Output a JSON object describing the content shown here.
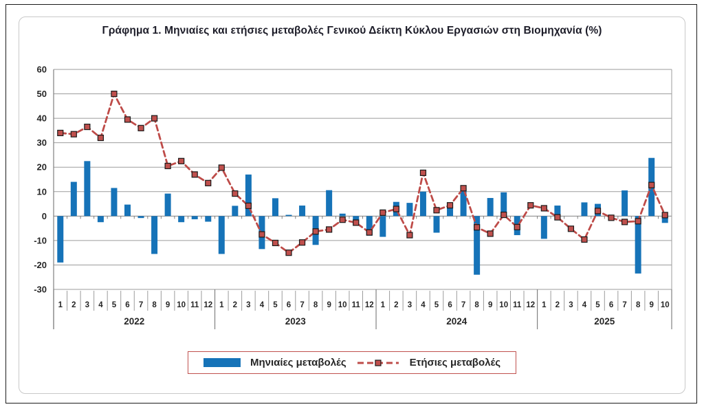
{
  "figure": {
    "title": "Γράφημα 1. Μηνιαίες και ετήσιες μεταβολές  Γενικού Δείκτη Κύκλου Εργασιών στη Βιομηχανία (%)"
  },
  "legend": {
    "monthly_label": "Μηνιαίες μεταβολές",
    "annual_label": "Ετήσιες μεταβολές"
  },
  "colors": {
    "bar": "#1673B8",
    "line": "#BE4B48",
    "marker_fill": "#C0504D",
    "marker_stroke": "#1A1A1A",
    "grid": "#9B9B9B",
    "axis_line": "#808080",
    "axis_text": "#262626",
    "legend_border": "#C0504D",
    "figure_border": "#1A1A1A",
    "chart_area_border": "#C8C8C8"
  },
  "chart_data": {
    "type": "combo_bar_line",
    "title": "Γράφημα 1. Μηνιαίες και ετήσιες μεταβολές  Γενικού Δείκτη Κύκλου Εργασιών στη Βιομηχανία (%)",
    "xlabel": "",
    "ylabel": "",
    "ylim": [
      -30,
      60
    ],
    "ytick_step": 10,
    "grid": true,
    "legend_position": "bottom",
    "categories": [
      "1",
      "2",
      "3",
      "4",
      "5",
      "6",
      "7",
      "8",
      "9",
      "10",
      "11",
      "12",
      "1",
      "2",
      "3",
      "4",
      "5",
      "6",
      "7",
      "8",
      "9",
      "10",
      "11",
      "12",
      "1",
      "2",
      "3",
      "4",
      "5",
      "6",
      "7",
      "8",
      "9",
      "10",
      "11",
      "12",
      "1",
      "2",
      "3",
      "4",
      "5",
      "6",
      "7",
      "8",
      "9",
      "10"
    ],
    "year_groups": [
      {
        "label": "2022",
        "count": 12
      },
      {
        "label": "2023",
        "count": 12
      },
      {
        "label": "2024",
        "count": 12
      },
      {
        "label": "2025",
        "count": 10
      }
    ],
    "series": [
      {
        "name": "Μηνιαίες μεταβολές",
        "type": "bar",
        "color": "#1673B8",
        "values": [
          -19,
          14,
          22.5,
          -2.5,
          11.5,
          4.7,
          -0.8,
          -15.5,
          9.2,
          -2.5,
          -1.3,
          -2.3,
          -15.5,
          4.2,
          17,
          -13.5,
          7.3,
          0.5,
          4.3,
          -11.8,
          10.6,
          1,
          -3.5,
          -8,
          -8.5,
          5.8,
          5.4,
          10,
          -6.8,
          3.3,
          11.3,
          -24,
          7.4,
          9.7,
          -7.8,
          0,
          -9.3,
          4.3,
          0,
          5.6,
          5,
          0,
          10.5,
          -23.5,
          23.8,
          -2.8
        ]
      },
      {
        "name": "Ετήσιες μεταβολές",
        "type": "line",
        "style": "dashed",
        "marker": "square",
        "color": "#BE4B48",
        "values": [
          34,
          33.5,
          36.5,
          32,
          50,
          39.5,
          36,
          40,
          20.5,
          22.5,
          17,
          13.5,
          19.8,
          9.2,
          4.2,
          -7.5,
          -11,
          -15,
          -10.8,
          -6.3,
          -5.5,
          -1.5,
          -2.7,
          -6.7,
          1.4,
          2.9,
          -7.8,
          17.7,
          2.4,
          4.4,
          11.4,
          -4.6,
          -7.2,
          0.5,
          -4.5,
          4.4,
          3.2,
          -0.5,
          -5.2,
          -9.6,
          2.1,
          -0.7,
          -2.4,
          -2.1,
          12.7,
          0.4
        ]
      }
    ]
  }
}
